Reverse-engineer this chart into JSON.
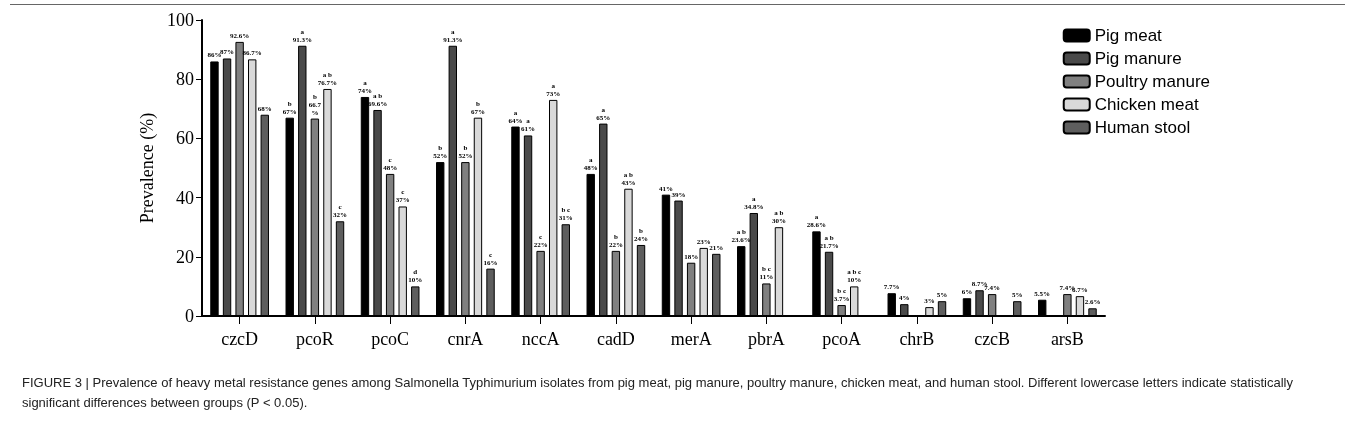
{
  "chart_data": {
    "type": "bar",
    "ylabel": "Prevalence (%)",
    "categories": [
      "czcD",
      "pcoR",
      "pcoC",
      "cnrA",
      "nccA",
      "cadD",
      "merA",
      "pbrA",
      "pcoA",
      "chrB",
      "czcB",
      "arsB"
    ],
    "series": [
      {
        "name": "Pig meat",
        "color": "#000000",
        "values": [
          86,
          67,
          74,
          52,
          64,
          48,
          41,
          23.6,
          28.6,
          7.7,
          6,
          5.5
        ],
        "value_labels": [
          "86%",
          "b\n67%",
          "a\n74%",
          "b\n52%",
          "a\n64%",
          "a\n48%",
          "41%",
          "a b\n23.6%",
          "a\n28.6%",
          "7.7%",
          "6%",
          "5.5%"
        ]
      },
      {
        "name": "Pig manure",
        "color": "#4a4a4a",
        "values": [
          87,
          91.3,
          69.6,
          91.3,
          61,
          65,
          39,
          34.8,
          21.7,
          4,
          8.7,
          null
        ],
        "value_labels": [
          "87%",
          "a\n91.3%",
          "a b\n69.6%",
          "a\n91.3%",
          "a\n61%",
          "a\n65%",
          "39%",
          "a\n34.8%",
          "a b\n21.7%",
          "4%",
          "8.7%",
          null
        ]
      },
      {
        "name": "Poultry manure",
        "color": "#808080",
        "values": [
          92.6,
          66.7,
          48,
          52,
          22,
          22,
          18,
          11,
          3.7,
          null,
          7.4,
          7.4
        ],
        "value_labels": [
          "92.6%",
          "b\n66.7\n%",
          "c\n48%",
          "b\n52%",
          "c\n22%",
          "b\n22%",
          "18%",
          "b c\n11%",
          "b c\n3.7%",
          null,
          "7.4%",
          "7.4%"
        ]
      },
      {
        "name": "Chicken meat",
        "color": "#d9d9d9",
        "values": [
          86.7,
          76.7,
          37,
          67,
          73,
          43,
          23,
          30,
          10,
          3,
          null,
          6.7
        ],
        "value_labels": [
          "86.7%",
          "a b\n76.7%",
          "c\n37%",
          "b\n67%",
          "a\n73%",
          "a b\n43%",
          "23%",
          "a b\n30%",
          "a b c\n10%",
          "3%",
          null,
          "6.7%"
        ]
      },
      {
        "name": "Human stool",
        "color": "#5e5e5e",
        "values": [
          68,
          32,
          10,
          16,
          31,
          24,
          21,
          null,
          null,
          5,
          5,
          2.6
        ],
        "value_labels": [
          "68%",
          "c\n32%",
          "d\n10%",
          "c\n16%",
          "b c\n31%",
          "b\n24%",
          "21%",
          null,
          null,
          "5%",
          "5%",
          "2.6%"
        ]
      }
    ],
    "ylim": [
      0,
      100
    ],
    "yticks": [
      0,
      20,
      40,
      60,
      80,
      100
    ],
    "grid": false,
    "legend": "top right",
    "annotations": [
      "FIGURE 3 | Prevalence of heavy metal resistance genes among Salmonella Typhimurium isolates from pig meat, pig manure, poultry manure, chicken meat, and human stool. Different lowercase letters indicate statistically significant differences between groups (P < 0.05)."
    ]
  }
}
